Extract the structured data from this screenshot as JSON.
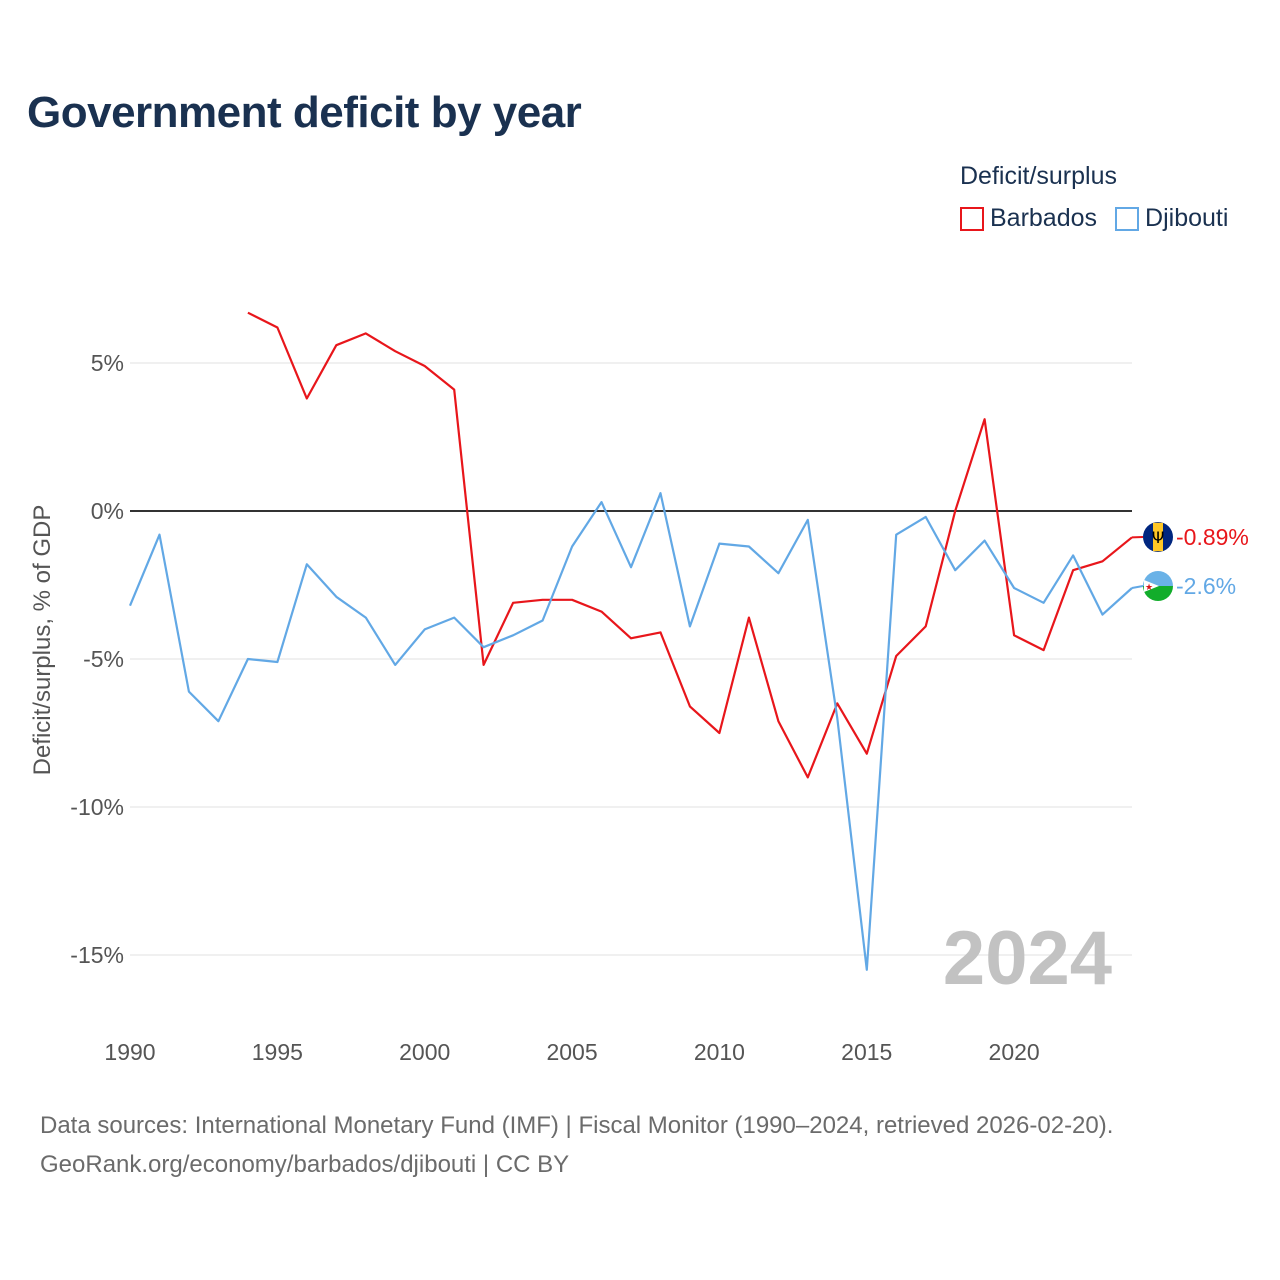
{
  "title": "Government deficit by year",
  "legend_title": "Deficit/surplus",
  "footer": {
    "line1": "Data sources: International Monetary Fund (IMF) | Fiscal Monitor (1990–2024, retrieved 2026-02-20).",
    "line2": "GeoRank.org/economy/barbados/djibouti | CC BY"
  },
  "colors": {
    "barbados": "#e8161b",
    "djibouti": "#62a8e5",
    "zero_line": "#333333",
    "grid": "#e6e6e6"
  },
  "chart_data": {
    "type": "line",
    "title": "Government deficit by year",
    "ylabel": "Deficit/surplus, % of GDP",
    "xlabel": "",
    "xlim": [
      1990,
      2024
    ],
    "ylim": [
      -17.5,
      7.5
    ],
    "x_ticks": [
      1990,
      1995,
      2000,
      2005,
      2010,
      2015,
      2020
    ],
    "y_ticks": [
      5,
      0,
      -5,
      -10,
      -15
    ],
    "y_tick_labels": [
      "5%",
      "0%",
      "-5%",
      "-10%",
      "-15%"
    ],
    "year_label": "2024",
    "series": [
      {
        "name": "Barbados",
        "color": "#e8161b",
        "end_label": "-0.89%",
        "flag": "barbados-flag",
        "x": [
          1994,
          1995,
          1996,
          1997,
          1998,
          1999,
          2000,
          2001,
          2002,
          2003,
          2004,
          2005,
          2006,
          2007,
          2008,
          2009,
          2010,
          2011,
          2012,
          2013,
          2014,
          2015,
          2016,
          2017,
          2018,
          2019,
          2020,
          2021,
          2022,
          2023,
          2024
        ],
        "values": [
          6.7,
          6.2,
          3.8,
          5.6,
          6.0,
          5.4,
          4.9,
          4.1,
          -5.2,
          -3.1,
          -3.0,
          -3.0,
          -3.4,
          -4.3,
          -4.1,
          -6.6,
          -7.5,
          -3.6,
          -7.1,
          -9.0,
          -6.5,
          -8.2,
          -4.9,
          -3.9,
          0.0,
          3.1,
          -4.2,
          -4.7,
          -2.0,
          -1.7,
          -0.89
        ]
      },
      {
        "name": "Djibouti",
        "color": "#62a8e5",
        "end_label": "-2.6%",
        "flag": "djibouti-flag",
        "x": [
          1990,
          1991,
          1992,
          1993,
          1994,
          1995,
          1996,
          1997,
          1998,
          1999,
          2000,
          2001,
          2002,
          2003,
          2004,
          2005,
          2006,
          2007,
          2008,
          2009,
          2010,
          2011,
          2012,
          2013,
          2014,
          2015,
          2016,
          2017,
          2018,
          2019,
          2020,
          2021,
          2022,
          2023,
          2024
        ],
        "values": [
          -3.2,
          -0.8,
          -6.1,
          -7.1,
          -5.0,
          -5.1,
          -1.8,
          -2.9,
          -3.6,
          -5.2,
          -4.0,
          -3.6,
          -4.6,
          -4.2,
          -3.7,
          -1.2,
          0.3,
          -1.9,
          0.6,
          -3.9,
          -1.1,
          -1.2,
          -2.1,
          -0.3,
          -7.0,
          -15.5,
          -0.8,
          -0.2,
          -2.0,
          -1.0,
          -2.6,
          -3.1,
          -1.5,
          -3.5,
          -2.6
        ]
      }
    ]
  }
}
